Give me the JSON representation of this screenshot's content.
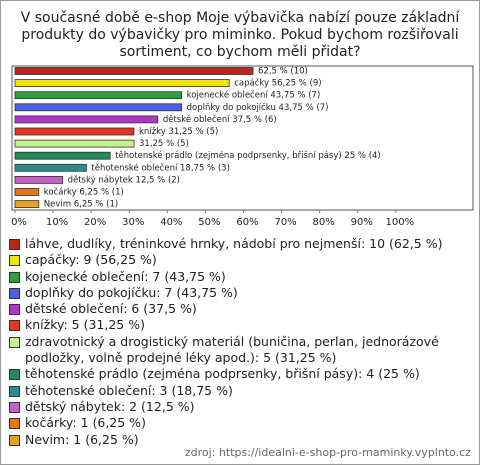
{
  "chart_data": {
    "type": "hbar",
    "title": [
      "V současné době e-shop Moje výbavička nabízí pouze základní",
      "produkty do výbavičky pro miminko. Pokud bychom rozšiřovali",
      "sortiment, co bychom měli přidat?"
    ],
    "categories": [
      "láhve, dudlíky, tréninkové hrnky, nádobí pro nejmenší: 10 (62,5 %)",
      "capáčky: 9 (56,25 %)",
      "kojenecké oblečení: 7 (43,75 %)",
      "doplňky do pokojíčku: 7 (43,75 %)",
      "dětské oblečení: 6 (37,5 %)",
      "knížky: 5 (31,25 %)",
      "zdravotnický a drogistický materiál (buničina, perlan, jednorázové podložky, volně prodejné léky apod.): 5 (31,25 %)",
      "těhotenské prádlo (zejména podprsenky, břišní pásy): 4 (25 %)",
      "těhotenské oblečení: 3 (18,75 %)",
      "dětský nábytek: 2 (12,5 %)",
      "kočárky: 1 (6,25 %)",
      "Nevim: 1 (6,25 %)"
    ],
    "values": [
      62.5,
      56.25,
      43.75,
      43.75,
      37.5,
      31.25,
      31.25,
      25,
      18.75,
      12.5,
      6.25,
      6.25
    ],
    "value_labels": [
      "62,5 % (10)",
      "capáčky 56,25 % (9)",
      "kojenecké oblečení 43,75 % (7)",
      "doplňky do pokojíčku 43,75 % (7)",
      "dětské oblečení 37,5 % (6)",
      "knížky 31,25 % (5)",
      "31,25 % (5)",
      "těhotenské prádlo (zejména podprsenky, břišní pásy) 25 % (4)",
      "těhotenské oblečení 18,75 % (3)",
      "dětský nábytek 12,5 % (2)",
      "kočárky 6,25 % (1)",
      "Nevim 6,25 % (1)"
    ],
    "colors": [
      "#b8261c",
      "#f2e600",
      "#2f9e3c",
      "#4a5fe6",
      "#b236c6",
      "#e2361f",
      "#c6f08a",
      "#238a5a",
      "#2c8c8c",
      "#c65fc6",
      "#e0781e",
      "#e6a21e"
    ],
    "xlim": [
      0,
      120
    ],
    "xticks": [
      {
        "value": 0,
        "label": "0%"
      },
      {
        "value": 10,
        "label": "10%"
      },
      {
        "value": 20,
        "label": "20%"
      },
      {
        "value": 30,
        "label": "30%"
      },
      {
        "value": 40,
        "label": "40%"
      },
      {
        "value": 50,
        "label": "50%"
      },
      {
        "value": 60,
        "label": "60%"
      },
      {
        "value": 70,
        "label": "70%"
      },
      {
        "value": 80,
        "label": "80%"
      },
      {
        "value": 90,
        "label": "90%"
      },
      {
        "value": 100,
        "label": "100%"
      }
    ],
    "source": "zdroj: https://idealni-e-shop-pro-maminky.vyplnto.cz"
  }
}
